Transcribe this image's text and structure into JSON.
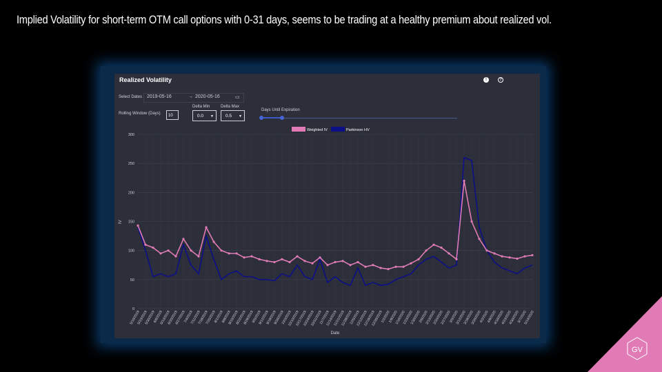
{
  "slide": {
    "title": "Implied Volatility for short-term OTM call options with 0-31 days, seems to be trading at a healthy premium about realized vol.",
    "logo_text": "GV",
    "logo_color": "#e07bb5"
  },
  "panel": {
    "title": "Realized Volatility",
    "info_icon": "info-icon",
    "help_icon": "help-icon",
    "select_dates_label": "Select Dates",
    "start_date": "2019-05-16",
    "date_arrow": "→",
    "end_date": "2020-05-16",
    "calendar_icon": "calendar-icon",
    "rolling_window_label": "Rolling Window (Days)",
    "rolling_window_value": "10",
    "delta_min_label": "Delta Min",
    "delta_min_value": "0.0",
    "delta_max_label": "Delta Max",
    "delta_max_value": "0.5",
    "days_until_expiration_label": "Days Until Expiration",
    "days_until_expiration_range": [
      0,
      31
    ]
  },
  "chart_data": {
    "type": "line",
    "xlabel": "Date",
    "ylabel": "IV",
    "ylim": [
      0,
      300
    ],
    "yticks": [
      0,
      50,
      100,
      150,
      200,
      250,
      300
    ],
    "grid": true,
    "legend_position": "top-center",
    "x": [
      "5/16/2019",
      "5/23/2019",
      "5/30/2019",
      "6/6/2019",
      "6/13/2019",
      "6/20/2019",
      "6/27/2019",
      "7/4/2019",
      "7/11/2019",
      "7/18/2019",
      "7/25/2019",
      "8/1/2019",
      "8/8/2019",
      "8/15/2019",
      "8/22/2019",
      "8/29/2019",
      "9/5/2019",
      "9/12/2019",
      "9/19/2019",
      "9/26/2019",
      "10/3/2019",
      "10/10/2019",
      "10/17/2019",
      "10/24/2019",
      "10/31/2019",
      "11/7/2019",
      "11/14/2019",
      "11/21/2019",
      "11/28/2019",
      "12/5/2019",
      "12/12/2019",
      "12/19/2019",
      "12/26/2019",
      "1/2/2020",
      "1/9/2020",
      "1/16/2020",
      "1/23/2020",
      "1/30/2020",
      "2/6/2020",
      "2/13/2020",
      "2/20/2020",
      "2/27/2020",
      "3/5/2020",
      "3/12/2020",
      "3/19/2020",
      "3/26/2020",
      "4/2/2020",
      "4/9/2020",
      "4/16/2020",
      "4/23/2020",
      "4/30/2020",
      "5/7/2020",
      "5/14/2020"
    ],
    "series": [
      {
        "name": "Weighted IV",
        "color": "#e07bb5",
        "values": [
          143,
          110,
          105,
          95,
          100,
          90,
          120,
          100,
          90,
          140,
          115,
          100,
          95,
          95,
          88,
          90,
          85,
          82,
          80,
          85,
          80,
          90,
          82,
          78,
          88,
          75,
          80,
          82,
          75,
          80,
          72,
          75,
          70,
          68,
          72,
          72,
          78,
          85,
          100,
          110,
          105,
          95,
          85,
          220,
          150,
          120,
          100,
          95,
          90,
          88,
          86,
          90,
          92
        ]
      },
      {
        "name": "Parkinson HV",
        "color": "#0d0f86",
        "values": [
          140,
          100,
          55,
          60,
          55,
          60,
          110,
          75,
          60,
          125,
          85,
          50,
          60,
          65,
          55,
          55,
          50,
          50,
          48,
          60,
          55,
          75,
          55,
          50,
          85,
          45,
          55,
          45,
          40,
          70,
          40,
          45,
          40,
          42,
          50,
          55,
          60,
          75,
          85,
          90,
          80,
          70,
          75,
          260,
          255,
          140,
          100,
          80,
          70,
          65,
          60,
          70,
          75
        ]
      }
    ]
  }
}
